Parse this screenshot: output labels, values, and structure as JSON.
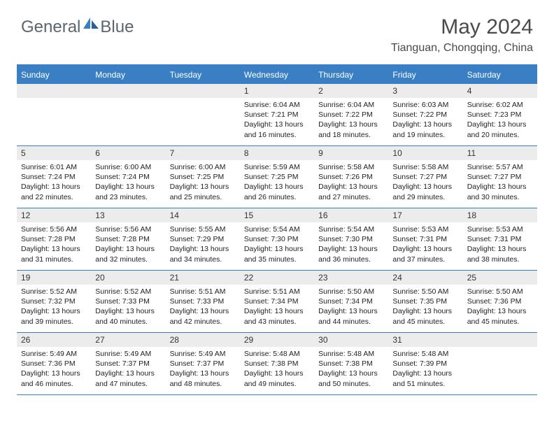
{
  "brand": {
    "part1": "General",
    "part2": "Blue"
  },
  "title": "May 2024",
  "location": "Tianguan, Chongqing, China",
  "colors": {
    "header_blue": "#3a7fc4",
    "daynum_bg": "#ececec",
    "text": "#222222",
    "title_text": "#4a4a4a",
    "brand_text": "#5a6670"
  },
  "weekdays": [
    "Sunday",
    "Monday",
    "Tuesday",
    "Wednesday",
    "Thursday",
    "Friday",
    "Saturday"
  ],
  "weeks": [
    [
      {
        "day": "",
        "sunrise": "",
        "sunset": "",
        "daylight": ""
      },
      {
        "day": "",
        "sunrise": "",
        "sunset": "",
        "daylight": ""
      },
      {
        "day": "",
        "sunrise": "",
        "sunset": "",
        "daylight": ""
      },
      {
        "day": "1",
        "sunrise": "6:04 AM",
        "sunset": "7:21 PM",
        "daylight": "13 hours and 16 minutes."
      },
      {
        "day": "2",
        "sunrise": "6:04 AM",
        "sunset": "7:22 PM",
        "daylight": "13 hours and 18 minutes."
      },
      {
        "day": "3",
        "sunrise": "6:03 AM",
        "sunset": "7:22 PM",
        "daylight": "13 hours and 19 minutes."
      },
      {
        "day": "4",
        "sunrise": "6:02 AM",
        "sunset": "7:23 PM",
        "daylight": "13 hours and 20 minutes."
      }
    ],
    [
      {
        "day": "5",
        "sunrise": "6:01 AM",
        "sunset": "7:24 PM",
        "daylight": "13 hours and 22 minutes."
      },
      {
        "day": "6",
        "sunrise": "6:00 AM",
        "sunset": "7:24 PM",
        "daylight": "13 hours and 23 minutes."
      },
      {
        "day": "7",
        "sunrise": "6:00 AM",
        "sunset": "7:25 PM",
        "daylight": "13 hours and 25 minutes."
      },
      {
        "day": "8",
        "sunrise": "5:59 AM",
        "sunset": "7:25 PM",
        "daylight": "13 hours and 26 minutes."
      },
      {
        "day": "9",
        "sunrise": "5:58 AM",
        "sunset": "7:26 PM",
        "daylight": "13 hours and 27 minutes."
      },
      {
        "day": "10",
        "sunrise": "5:58 AM",
        "sunset": "7:27 PM",
        "daylight": "13 hours and 29 minutes."
      },
      {
        "day": "11",
        "sunrise": "5:57 AM",
        "sunset": "7:27 PM",
        "daylight": "13 hours and 30 minutes."
      }
    ],
    [
      {
        "day": "12",
        "sunrise": "5:56 AM",
        "sunset": "7:28 PM",
        "daylight": "13 hours and 31 minutes."
      },
      {
        "day": "13",
        "sunrise": "5:56 AM",
        "sunset": "7:28 PM",
        "daylight": "13 hours and 32 minutes."
      },
      {
        "day": "14",
        "sunrise": "5:55 AM",
        "sunset": "7:29 PM",
        "daylight": "13 hours and 34 minutes."
      },
      {
        "day": "15",
        "sunrise": "5:54 AM",
        "sunset": "7:30 PM",
        "daylight": "13 hours and 35 minutes."
      },
      {
        "day": "16",
        "sunrise": "5:54 AM",
        "sunset": "7:30 PM",
        "daylight": "13 hours and 36 minutes."
      },
      {
        "day": "17",
        "sunrise": "5:53 AM",
        "sunset": "7:31 PM",
        "daylight": "13 hours and 37 minutes."
      },
      {
        "day": "18",
        "sunrise": "5:53 AM",
        "sunset": "7:31 PM",
        "daylight": "13 hours and 38 minutes."
      }
    ],
    [
      {
        "day": "19",
        "sunrise": "5:52 AM",
        "sunset": "7:32 PM",
        "daylight": "13 hours and 39 minutes."
      },
      {
        "day": "20",
        "sunrise": "5:52 AM",
        "sunset": "7:33 PM",
        "daylight": "13 hours and 40 minutes."
      },
      {
        "day": "21",
        "sunrise": "5:51 AM",
        "sunset": "7:33 PM",
        "daylight": "13 hours and 42 minutes."
      },
      {
        "day": "22",
        "sunrise": "5:51 AM",
        "sunset": "7:34 PM",
        "daylight": "13 hours and 43 minutes."
      },
      {
        "day": "23",
        "sunrise": "5:50 AM",
        "sunset": "7:34 PM",
        "daylight": "13 hours and 44 minutes."
      },
      {
        "day": "24",
        "sunrise": "5:50 AM",
        "sunset": "7:35 PM",
        "daylight": "13 hours and 45 minutes."
      },
      {
        "day": "25",
        "sunrise": "5:50 AM",
        "sunset": "7:36 PM",
        "daylight": "13 hours and 45 minutes."
      }
    ],
    [
      {
        "day": "26",
        "sunrise": "5:49 AM",
        "sunset": "7:36 PM",
        "daylight": "13 hours and 46 minutes."
      },
      {
        "day": "27",
        "sunrise": "5:49 AM",
        "sunset": "7:37 PM",
        "daylight": "13 hours and 47 minutes."
      },
      {
        "day": "28",
        "sunrise": "5:49 AM",
        "sunset": "7:37 PM",
        "daylight": "13 hours and 48 minutes."
      },
      {
        "day": "29",
        "sunrise": "5:48 AM",
        "sunset": "7:38 PM",
        "daylight": "13 hours and 49 minutes."
      },
      {
        "day": "30",
        "sunrise": "5:48 AM",
        "sunset": "7:38 PM",
        "daylight": "13 hours and 50 minutes."
      },
      {
        "day": "31",
        "sunrise": "5:48 AM",
        "sunset": "7:39 PM",
        "daylight": "13 hours and 51 minutes."
      },
      {
        "day": "",
        "sunrise": "",
        "sunset": "",
        "daylight": ""
      }
    ]
  ],
  "labels": {
    "sunrise": "Sunrise:",
    "sunset": "Sunset:",
    "daylight": "Daylight:"
  }
}
